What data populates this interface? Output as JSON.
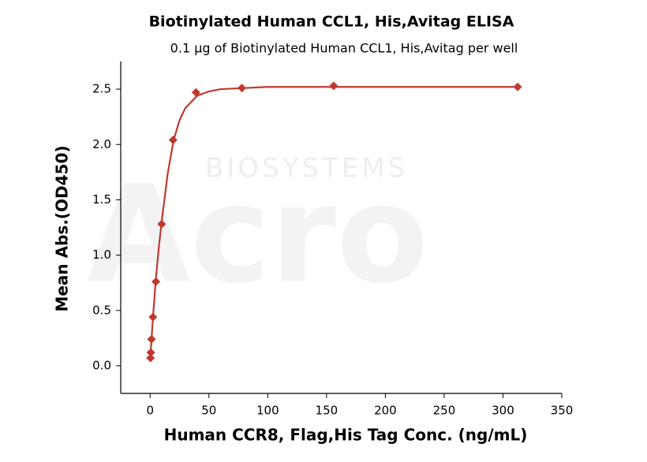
{
  "chart_data": {
    "type": "scatter",
    "title": "Biotinylated Human CCL1, His,Avitag ELISA",
    "subtitle": "0.1 µg of Biotinylated Human CCL1, His,Avitag per well",
    "watermark": [
      "BIOSYSTEMS",
      "Acro"
    ],
    "x_label": "Human CCR8, Flag,His Tag Conc. (ng/mL)",
    "y_label": "Mean Abs.(OD450)",
    "xlim": [
      -25,
      350
    ],
    "ylim": [
      -0.25,
      2.75
    ],
    "xticks": [
      0,
      50,
      100,
      150,
      200,
      250,
      300,
      350
    ],
    "yticks": [
      {
        "value": 0,
        "label": "0.0"
      },
      0.5,
      {
        "value": 1,
        "label": "1.0"
      },
      1.5,
      {
        "value": 2,
        "label": "2.0"
      },
      2.5
    ],
    "series": [
      {
        "type": "scatter",
        "marker": "diamond",
        "color": "#c0392f",
        "x": [
          0.3,
          0.6,
          1.2,
          2.4,
          4.9,
          9.8,
          19.5,
          39,
          78,
          156,
          312.5
        ],
        "values": [
          0.07,
          0.12,
          0.24,
          0.44,
          0.76,
          1.28,
          2.04,
          2.47,
          2.51,
          2.53,
          2.52
        ]
      },
      {
        "type": "line",
        "color": "#c0392f",
        "x": [
          0,
          2.5,
          5,
          7.5,
          10,
          15,
          20,
          25,
          30,
          40,
          50,
          60,
          80,
          100,
          150,
          200,
          250,
          312.5
        ],
        "values": [
          0.05,
          0.45,
          0.8,
          1.08,
          1.32,
          1.74,
          2.04,
          2.22,
          2.33,
          2.44,
          2.48,
          2.5,
          2.51,
          2.52,
          2.52,
          2.52,
          2.52,
          2.52
        ]
      }
    ]
  }
}
